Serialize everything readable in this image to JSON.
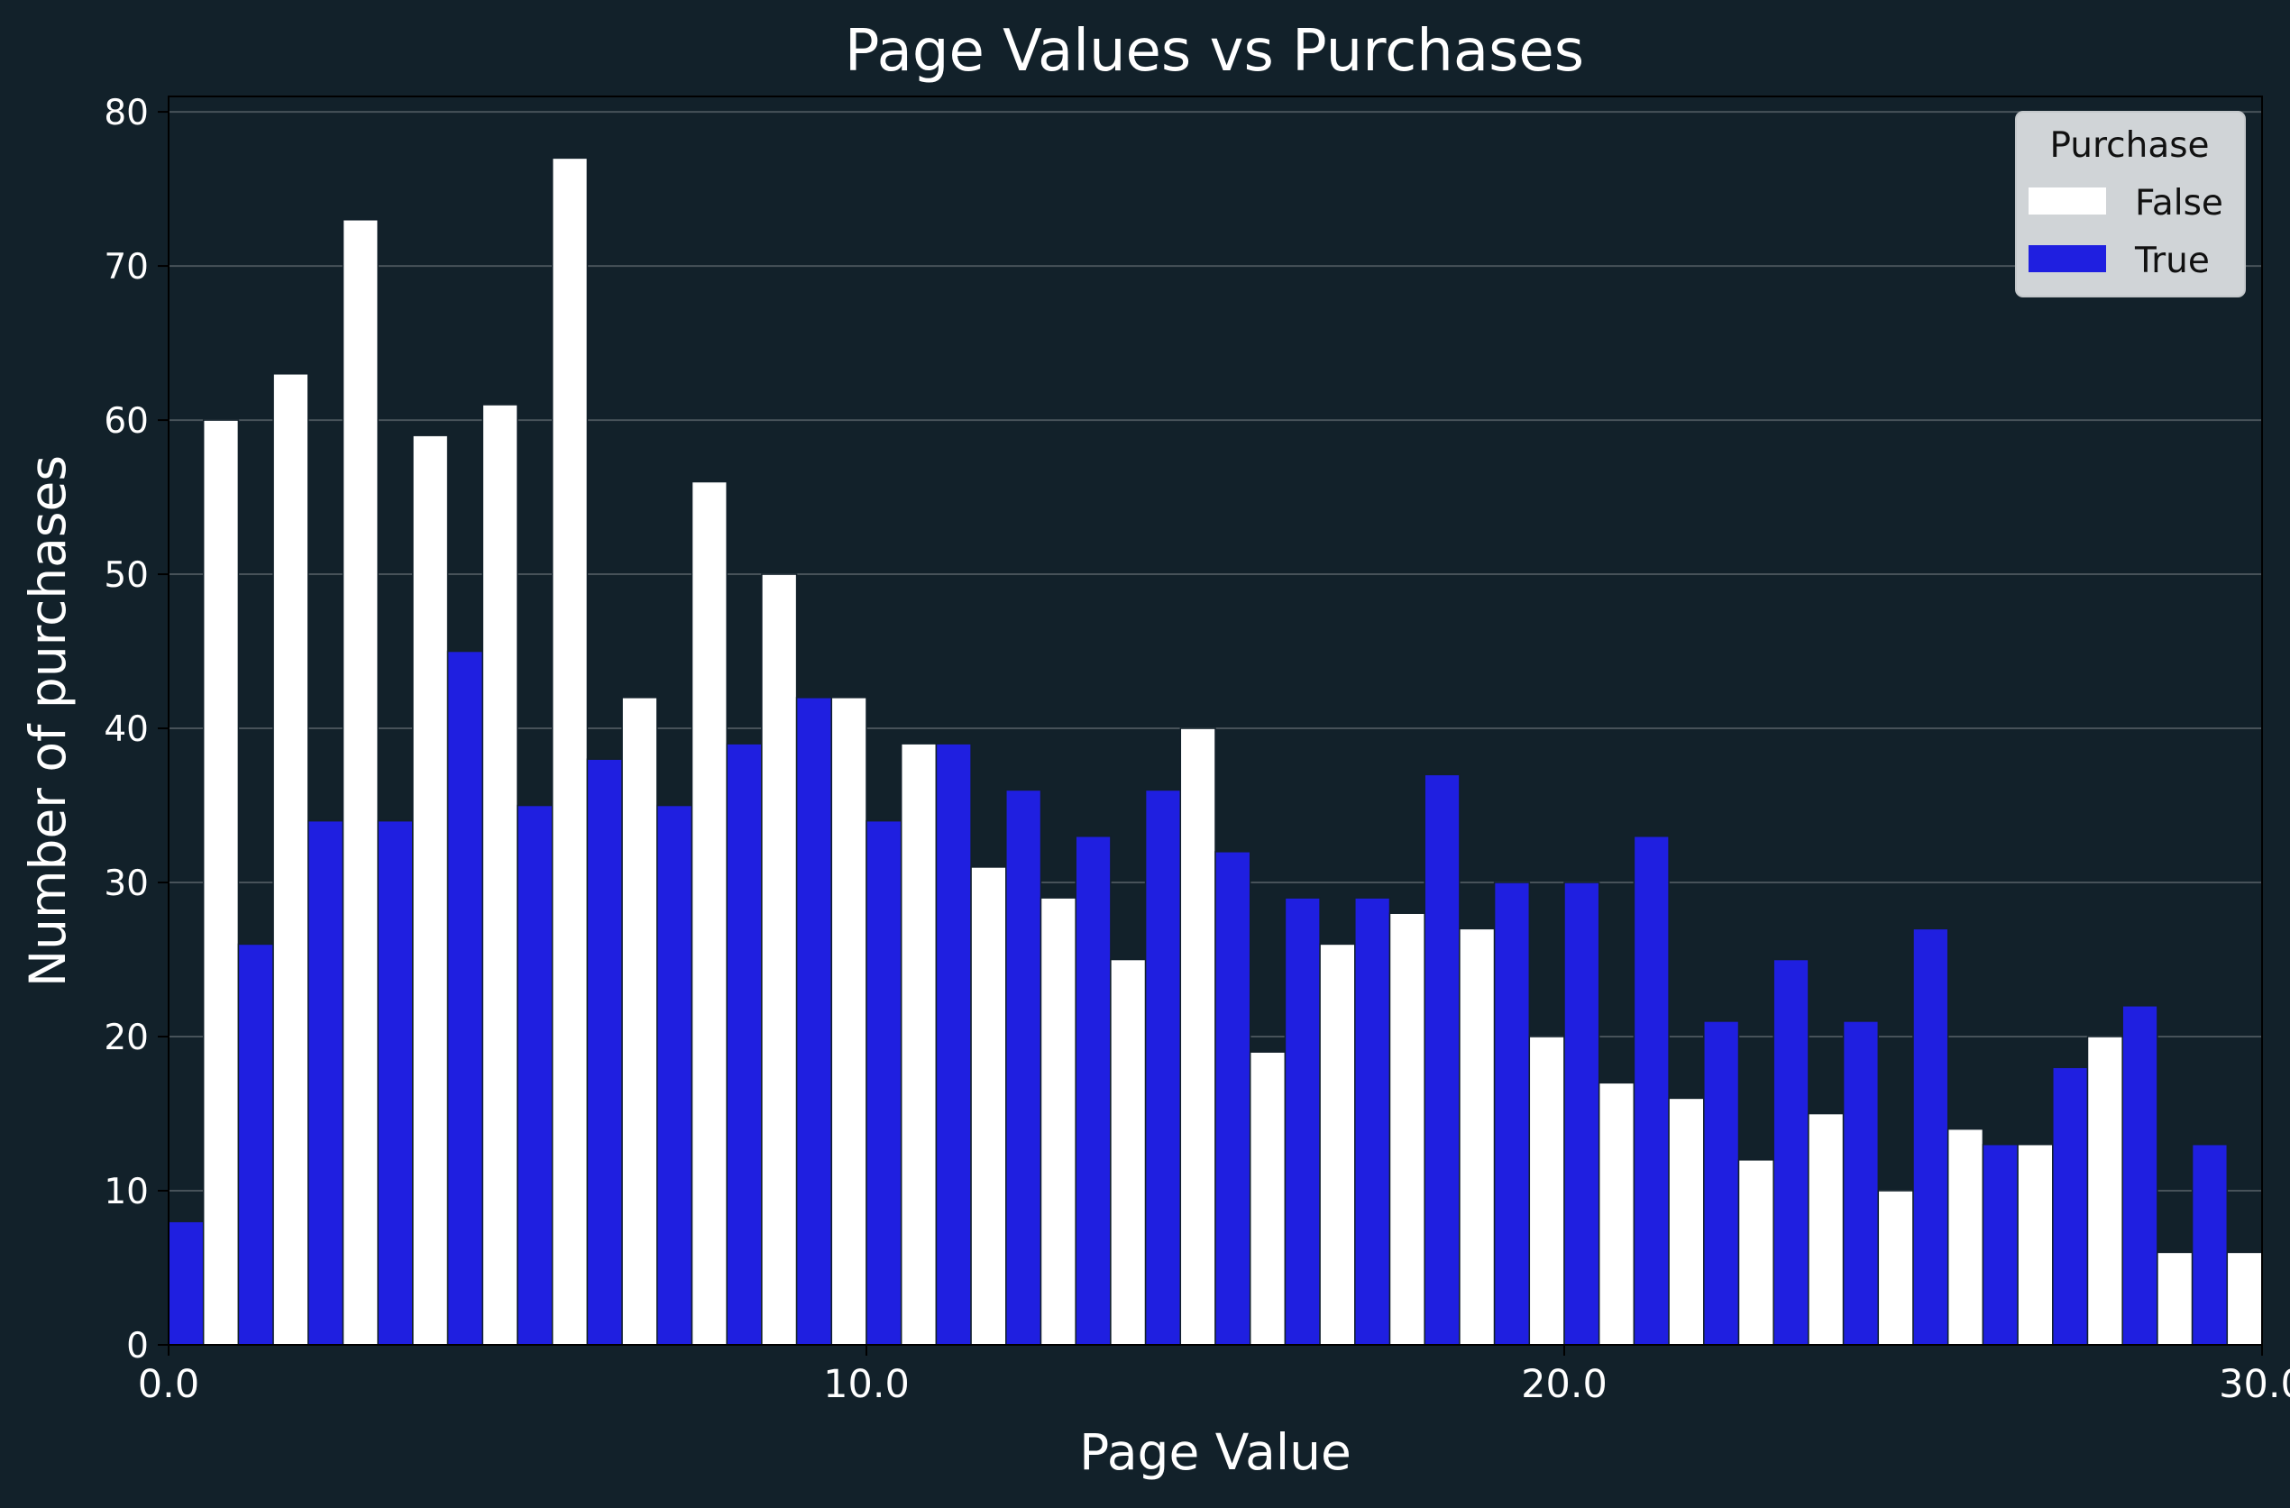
{
  "chart_data": {
    "type": "bar",
    "title": "Page Values vs Purchases",
    "xlabel": "Page Value",
    "ylabel": "Number of purchases",
    "xlim": [
      0,
      30
    ],
    "ylim": [
      0,
      81
    ],
    "x_ticks": [
      {
        "value": 0,
        "label": "0.0"
      },
      {
        "value": 10,
        "label": "10.0"
      },
      {
        "value": 20,
        "label": "20.0"
      },
      {
        "value": 30,
        "label": "30.0"
      }
    ],
    "y_ticks": [
      0,
      10,
      20,
      30,
      40,
      50,
      60,
      70,
      80
    ],
    "grid": "horizontal",
    "bin_width": 1,
    "bin_starts": [
      0,
      1,
      2,
      3,
      4,
      5,
      6,
      7,
      8,
      9,
      10,
      11,
      12,
      13,
      14,
      15,
      16,
      17,
      18,
      19,
      20,
      21,
      22,
      23,
      24,
      25,
      26,
      27,
      28,
      29,
      30
    ],
    "legend": {
      "title": "Purchase",
      "position": "top-right"
    },
    "series": [
      {
        "name": "False",
        "color": "#ffffff",
        "values": [
          0,
          60,
          63,
          73,
          59,
          61,
          77,
          42,
          56,
          50,
          42,
          39,
          31,
          29,
          25,
          40,
          19,
          26,
          28,
          27,
          20,
          17,
          16,
          12,
          15,
          10,
          14,
          13,
          20,
          6,
          6
        ]
      },
      {
        "name": "True",
        "color": "#1f1fe0",
        "values": [
          8,
          26,
          34,
          34,
          45,
          35,
          38,
          35,
          39,
          42,
          34,
          39,
          36,
          33,
          36,
          32,
          29,
          29,
          37,
          30,
          30,
          33,
          21,
          25,
          21,
          27,
          13,
          18,
          22,
          13,
          0
        ]
      }
    ]
  }
}
